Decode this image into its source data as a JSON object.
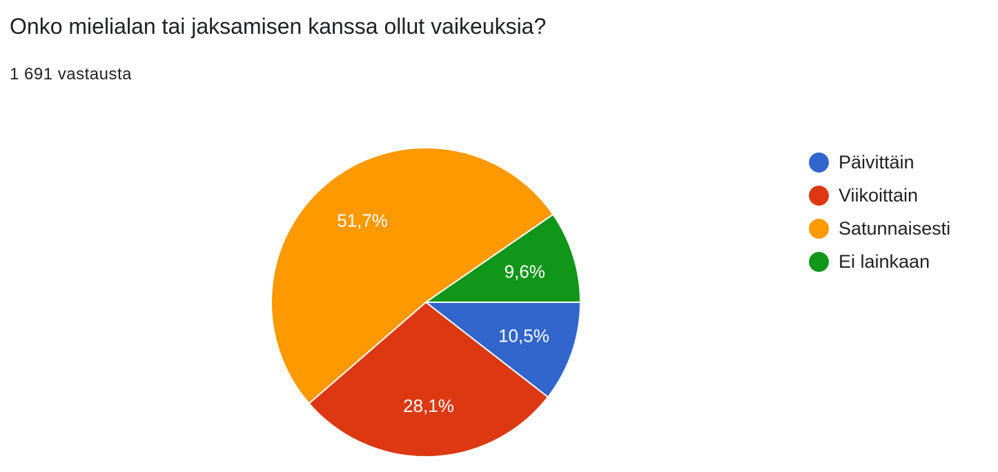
{
  "chart_data": {
    "type": "pie",
    "title": "Onko mielialan tai jaksamisen kanssa ollut vaikeuksia?",
    "subtitle": "1 691 vastausta",
    "legend_position": "right",
    "slices": [
      {
        "label": "Päivittäin",
        "value": 10.5,
        "value_label": "10,5%",
        "color": "#3366cc"
      },
      {
        "label": "Viikoittain",
        "value": 28.1,
        "value_label": "28,1%",
        "color": "#dc3912"
      },
      {
        "label": "Satunnaisesti",
        "value": 51.7,
        "value_label": "51,7%",
        "color": "#ff9900"
      },
      {
        "label": "Ei lainkaan",
        "value": 9.6,
        "value_label": "9,6%",
        "color": "#109618"
      }
    ]
  }
}
